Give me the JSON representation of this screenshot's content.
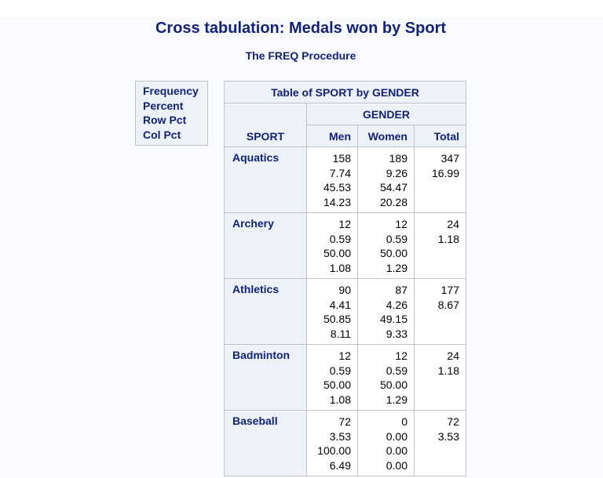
{
  "title": "Cross tabulation: Medals won by Sport",
  "subtitle": "The FREQ Procedure",
  "legend": [
    "Frequency",
    "Percent",
    "Row Pct",
    "Col Pct"
  ],
  "table": {
    "caption": "Table of SPORT by GENDER",
    "col_group": "GENDER",
    "row_var": "SPORT",
    "columns": [
      "Men",
      "Women",
      "Total"
    ],
    "rows": [
      {
        "label": "Aquatics",
        "men": [
          "158",
          "7.74",
          "45.53",
          "14.23"
        ],
        "women": [
          "189",
          "9.26",
          "54.47",
          "20.28"
        ],
        "total": [
          "347",
          "16.99"
        ]
      },
      {
        "label": "Archery",
        "men": [
          "12",
          "0.59",
          "50.00",
          "1.08"
        ],
        "women": [
          "12",
          "0.59",
          "50.00",
          "1.29"
        ],
        "total": [
          "24",
          "1.18"
        ]
      },
      {
        "label": "Athletics",
        "men": [
          "90",
          "4.41",
          "50.85",
          "8.11"
        ],
        "women": [
          "87",
          "4.26",
          "49.15",
          "9.33"
        ],
        "total": [
          "177",
          "8.67"
        ]
      },
      {
        "label": "Badminton",
        "men": [
          "12",
          "0.59",
          "50.00",
          "1.08"
        ],
        "women": [
          "12",
          "0.59",
          "50.00",
          "1.29"
        ],
        "total": [
          "24",
          "1.18"
        ]
      },
      {
        "label": "Baseball",
        "men": [
          "72",
          "3.53",
          "100.00",
          "6.49"
        ],
        "women": [
          "0",
          "0.00",
          "0.00",
          "0.00"
        ],
        "total": [
          "72",
          "3.53"
        ]
      }
    ]
  }
}
